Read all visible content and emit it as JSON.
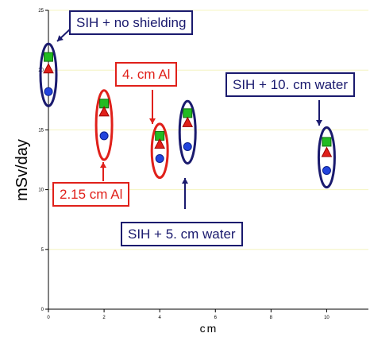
{
  "chart_data": {
    "type": "scatter",
    "title": "",
    "xlabel": "cm",
    "ylabel": "mSv/day",
    "xlim": [
      0,
      11.5
    ],
    "ylim": [
      0,
      25
    ],
    "xticks": [
      0,
      2,
      4,
      6,
      8,
      10
    ],
    "yticks": [
      0,
      5,
      10,
      15,
      20,
      25
    ],
    "grid": "horizontal",
    "series": [
      {
        "marker": "square",
        "color": "#22bb22",
        "edge": "#0d6b0d",
        "x": [
          0,
          2,
          4,
          5,
          10
        ],
        "y": [
          21.1,
          17.2,
          14.5,
          16.4,
          14.0
        ]
      },
      {
        "marker": "triangle",
        "color": "#e0201a",
        "edge": "#9c0000",
        "x": [
          0,
          2,
          4,
          5,
          10
        ],
        "y": [
          20.1,
          16.5,
          13.8,
          15.6,
          13.1
        ]
      },
      {
        "marker": "circle",
        "color": "#2244dd",
        "edge": "#0a1f8c",
        "x": [
          0,
          2,
          4,
          5,
          10
        ],
        "y": [
          18.2,
          14.5,
          12.6,
          13.6,
          11.6
        ]
      }
    ],
    "groups": [
      {
        "x": 0,
        "ymin": 17.0,
        "ymax": 22.2,
        "color": "#1a1a6e"
      },
      {
        "x": 2,
        "ymin": 12.5,
        "ymax": 18.3,
        "color": "#e0201a"
      },
      {
        "x": 4,
        "ymin": 11.0,
        "ymax": 15.5,
        "color": "#e0201a"
      },
      {
        "x": 5,
        "ymin": 12.2,
        "ymax": 17.4,
        "color": "#1a1a6e"
      },
      {
        "x": 10,
        "ymin": 10.2,
        "ymax": 15.2,
        "color": "#1a1a6e"
      }
    ],
    "annotations": [
      "SIH + no shielding",
      "4. cm Al",
      "SIH + 10. cm water",
      "2.15 cm Al",
      "SIH + 5. cm water"
    ]
  }
}
